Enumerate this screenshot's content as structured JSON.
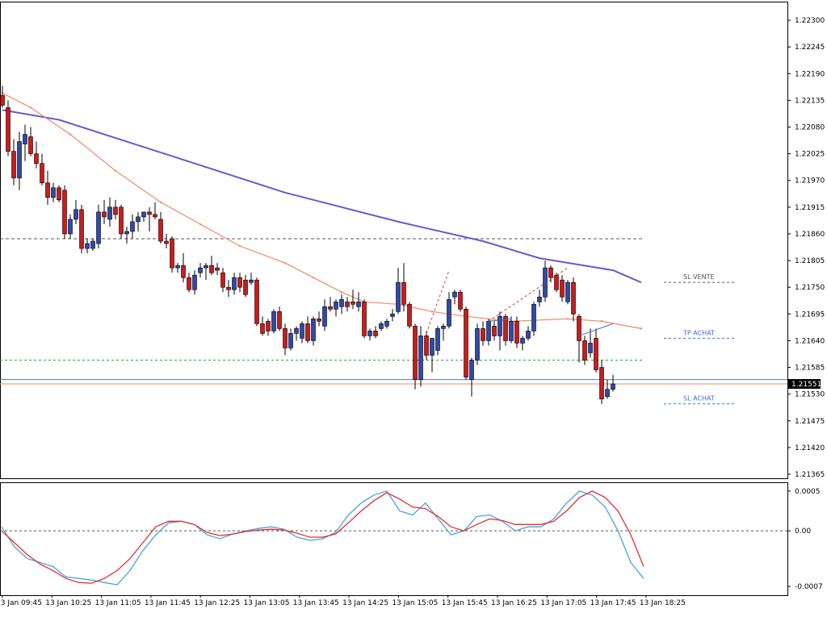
{
  "chart_data": [
    {
      "type": "candlestick",
      "title": "",
      "ylim": [
        1.21365,
        1.2233
      ],
      "price_tick_labels": [
        "1.22300",
        "1.22245",
        "1.22190",
        "1.22135",
        "1.22080",
        "1.22025",
        "1.21970",
        "1.21915",
        "1.21860",
        "1.21805",
        "1.21750",
        "1.21695",
        "1.21640",
        "1.21585",
        "1.21530",
        "1.21475",
        "1.21420",
        "1.21365"
      ],
      "time_tick_labels": [
        "13 Jan 09:45",
        "13 Jan 10:25",
        "13 Jan 11:05",
        "13 Jan 11:45",
        "13 Jan 12:25",
        "13 Jan 13:05",
        "13 Jan 13:45",
        "13 Jan 14:25",
        "13 Jan 15:05",
        "13 Jan 15:45",
        "13 Jan 16:25",
        "13 Jan 17:05",
        "13 Jan 17:45",
        "13 Jan 18:25"
      ],
      "current_price_label": "1.21551",
      "candles": [
        {
          "o": 1.22145,
          "h": 1.22165,
          "l": 1.2212,
          "c": 1.22125
        },
        {
          "o": 1.2212,
          "h": 1.22135,
          "l": 1.2202,
          "c": 1.2203
        },
        {
          "o": 1.2203,
          "h": 1.22055,
          "l": 1.2196,
          "c": 1.21975
        },
        {
          "o": 1.21975,
          "h": 1.2207,
          "l": 1.2195,
          "c": 1.2205
        },
        {
          "o": 1.22045,
          "h": 1.22085,
          "l": 1.2201,
          "c": 1.22065
        },
        {
          "o": 1.2206,
          "h": 1.2208,
          "l": 1.2202,
          "c": 1.22025
        },
        {
          "o": 1.22025,
          "h": 1.2205,
          "l": 1.21995,
          "c": 1.22005
        },
        {
          "o": 1.22005,
          "h": 1.22025,
          "l": 1.2196,
          "c": 1.21965
        },
        {
          "o": 1.21965,
          "h": 1.2199,
          "l": 1.2192,
          "c": 1.21935
        },
        {
          "o": 1.21935,
          "h": 1.21965,
          "l": 1.21925,
          "c": 1.21955
        },
        {
          "o": 1.21955,
          "h": 1.2196,
          "l": 1.21925,
          "c": 1.2193
        },
        {
          "o": 1.2195,
          "h": 1.2196,
          "l": 1.2185,
          "c": 1.2186
        },
        {
          "o": 1.2186,
          "h": 1.219,
          "l": 1.2185,
          "c": 1.2189
        },
        {
          "o": 1.2189,
          "h": 1.2193,
          "l": 1.2188,
          "c": 1.2191
        },
        {
          "o": 1.2191,
          "h": 1.2192,
          "l": 1.2182,
          "c": 1.2183
        },
        {
          "o": 1.2183,
          "h": 1.2185,
          "l": 1.2182,
          "c": 1.2184
        },
        {
          "o": 1.2183,
          "h": 1.2185,
          "l": 1.21825,
          "c": 1.21845
        },
        {
          "o": 1.2184,
          "h": 1.2192,
          "l": 1.2183,
          "c": 1.21905
        },
        {
          "o": 1.21905,
          "h": 1.2193,
          "l": 1.2188,
          "c": 1.21895
        },
        {
          "o": 1.2189,
          "h": 1.21935,
          "l": 1.21875,
          "c": 1.21915
        },
        {
          "o": 1.21915,
          "h": 1.2193,
          "l": 1.2189,
          "c": 1.219
        },
        {
          "o": 1.21915,
          "h": 1.2192,
          "l": 1.2185,
          "c": 1.2186
        },
        {
          "o": 1.2186,
          "h": 1.21875,
          "l": 1.2184,
          "c": 1.21865
        },
        {
          "o": 1.21865,
          "h": 1.219,
          "l": 1.2185,
          "c": 1.21885
        },
        {
          "o": 1.21885,
          "h": 1.21905,
          "l": 1.21865,
          "c": 1.21895
        },
        {
          "o": 1.21895,
          "h": 1.21905,
          "l": 1.21885,
          "c": 1.21905
        },
        {
          "o": 1.21905,
          "h": 1.21915,
          "l": 1.21865,
          "c": 1.219
        },
        {
          "o": 1.219,
          "h": 1.21925,
          "l": 1.2189,
          "c": 1.21895
        },
        {
          "o": 1.2189,
          "h": 1.21905,
          "l": 1.2184,
          "c": 1.21845
        },
        {
          "o": 1.21845,
          "h": 1.2186,
          "l": 1.2183,
          "c": 1.2184
        },
        {
          "o": 1.2185,
          "h": 1.21855,
          "l": 1.2178,
          "c": 1.2179
        },
        {
          "o": 1.2179,
          "h": 1.218,
          "l": 1.2178,
          "c": 1.21795
        },
        {
          "o": 1.21795,
          "h": 1.2182,
          "l": 1.2176,
          "c": 1.2177
        },
        {
          "o": 1.2177,
          "h": 1.2178,
          "l": 1.2174,
          "c": 1.21745
        },
        {
          "o": 1.21745,
          "h": 1.21785,
          "l": 1.21735,
          "c": 1.21775
        },
        {
          "o": 1.2178,
          "h": 1.218,
          "l": 1.2177,
          "c": 1.2179
        },
        {
          "o": 1.2179,
          "h": 1.218,
          "l": 1.21765,
          "c": 1.21795
        },
        {
          "o": 1.21795,
          "h": 1.21815,
          "l": 1.21775,
          "c": 1.2178
        },
        {
          "o": 1.2179,
          "h": 1.218,
          "l": 1.21775,
          "c": 1.21785
        },
        {
          "o": 1.2178,
          "h": 1.2179,
          "l": 1.2174,
          "c": 1.2175
        },
        {
          "o": 1.2175,
          "h": 1.21765,
          "l": 1.2173,
          "c": 1.21745
        },
        {
          "o": 1.21745,
          "h": 1.2178,
          "l": 1.21735,
          "c": 1.2177
        },
        {
          "o": 1.2177,
          "h": 1.2178,
          "l": 1.2174,
          "c": 1.2175
        },
        {
          "o": 1.21765,
          "h": 1.21775,
          "l": 1.2173,
          "c": 1.21735
        },
        {
          "o": 1.2176,
          "h": 1.2178,
          "l": 1.21755,
          "c": 1.21765
        },
        {
          "o": 1.21765,
          "h": 1.2177,
          "l": 1.2167,
          "c": 1.21675
        },
        {
          "o": 1.21675,
          "h": 1.2169,
          "l": 1.2165,
          "c": 1.21655
        },
        {
          "o": 1.2168,
          "h": 1.21685,
          "l": 1.2165,
          "c": 1.2166
        },
        {
          "o": 1.2166,
          "h": 1.21705,
          "l": 1.21655,
          "c": 1.217
        },
        {
          "o": 1.217,
          "h": 1.2171,
          "l": 1.2166,
          "c": 1.21665
        },
        {
          "o": 1.21665,
          "h": 1.21675,
          "l": 1.2161,
          "c": 1.21625
        },
        {
          "o": 1.21625,
          "h": 1.21665,
          "l": 1.2162,
          "c": 1.21655
        },
        {
          "o": 1.21655,
          "h": 1.2167,
          "l": 1.2164,
          "c": 1.21665
        },
        {
          "o": 1.21645,
          "h": 1.2168,
          "l": 1.21635,
          "c": 1.21675
        },
        {
          "o": 1.21675,
          "h": 1.2169,
          "l": 1.21635,
          "c": 1.2164
        },
        {
          "o": 1.2164,
          "h": 1.2169,
          "l": 1.2163,
          "c": 1.21685
        },
        {
          "o": 1.21685,
          "h": 1.217,
          "l": 1.2167,
          "c": 1.2168
        },
        {
          "o": 1.2167,
          "h": 1.21725,
          "l": 1.2166,
          "c": 1.2171
        },
        {
          "o": 1.2171,
          "h": 1.2173,
          "l": 1.217,
          "c": 1.21705
        },
        {
          "o": 1.21705,
          "h": 1.21725,
          "l": 1.2169,
          "c": 1.2172
        },
        {
          "o": 1.2171,
          "h": 1.21735,
          "l": 1.21695,
          "c": 1.21725
        },
        {
          "o": 1.2172,
          "h": 1.2173,
          "l": 1.217,
          "c": 1.2171
        },
        {
          "o": 1.2172,
          "h": 1.21745,
          "l": 1.21705,
          "c": 1.21715
        },
        {
          "o": 1.2171,
          "h": 1.2174,
          "l": 1.217,
          "c": 1.2172
        },
        {
          "o": 1.2172,
          "h": 1.21725,
          "l": 1.21645,
          "c": 1.2165
        },
        {
          "o": 1.2165,
          "h": 1.21665,
          "l": 1.2164,
          "c": 1.2166
        },
        {
          "o": 1.2166,
          "h": 1.2167,
          "l": 1.21645,
          "c": 1.2165
        },
        {
          "o": 1.21665,
          "h": 1.2168,
          "l": 1.2166,
          "c": 1.21675
        },
        {
          "o": 1.2167,
          "h": 1.21685,
          "l": 1.21665,
          "c": 1.2168
        },
        {
          "o": 1.2169,
          "h": 1.21705,
          "l": 1.2168,
          "c": 1.21695
        },
        {
          "o": 1.217,
          "h": 1.2179,
          "l": 1.21695,
          "c": 1.2176
        },
        {
          "o": 1.2176,
          "h": 1.218,
          "l": 1.217,
          "c": 1.21715
        },
        {
          "o": 1.21715,
          "h": 1.2172,
          "l": 1.21665,
          "c": 1.2167
        },
        {
          "o": 1.2167,
          "h": 1.21675,
          "l": 1.2154,
          "c": 1.2156
        },
        {
          "o": 1.2156,
          "h": 1.2167,
          "l": 1.21545,
          "c": 1.2165
        },
        {
          "o": 1.2165,
          "h": 1.2166,
          "l": 1.216,
          "c": 1.2161
        },
        {
          "o": 1.2161,
          "h": 1.2164,
          "l": 1.21575,
          "c": 1.21645
        },
        {
          "o": 1.2162,
          "h": 1.2167,
          "l": 1.2161,
          "c": 1.21665
        },
        {
          "o": 1.21665,
          "h": 1.21675,
          "l": 1.2164,
          "c": 1.2167
        },
        {
          "o": 1.2167,
          "h": 1.2174,
          "l": 1.21665,
          "c": 1.21725
        },
        {
          "o": 1.2173,
          "h": 1.21745,
          "l": 1.21715,
          "c": 1.2174
        },
        {
          "o": 1.2174,
          "h": 1.21745,
          "l": 1.217,
          "c": 1.21705
        },
        {
          "o": 1.21705,
          "h": 1.2171,
          "l": 1.2156,
          "c": 1.21565
        },
        {
          "o": 1.2156,
          "h": 1.21605,
          "l": 1.21525,
          "c": 1.216
        },
        {
          "o": 1.216,
          "h": 1.21675,
          "l": 1.2159,
          "c": 1.21665
        },
        {
          "o": 1.21665,
          "h": 1.2168,
          "l": 1.2163,
          "c": 1.2164
        },
        {
          "o": 1.2164,
          "h": 1.21685,
          "l": 1.2163,
          "c": 1.2168
        },
        {
          "o": 1.2167,
          "h": 1.2168,
          "l": 1.2164,
          "c": 1.2165
        },
        {
          "o": 1.2165,
          "h": 1.217,
          "l": 1.2162,
          "c": 1.2169
        },
        {
          "o": 1.2169,
          "h": 1.21695,
          "l": 1.2163,
          "c": 1.2164
        },
        {
          "o": 1.2164,
          "h": 1.2169,
          "l": 1.21635,
          "c": 1.2168
        },
        {
          "o": 1.2168,
          "h": 1.2169,
          "l": 1.21625,
          "c": 1.21635
        },
        {
          "o": 1.21635,
          "h": 1.2165,
          "l": 1.2162,
          "c": 1.21645
        },
        {
          "o": 1.21645,
          "h": 1.2167,
          "l": 1.2164,
          "c": 1.2166
        },
        {
          "o": 1.2166,
          "h": 1.2172,
          "l": 1.2165,
          "c": 1.21715
        },
        {
          "o": 1.2172,
          "h": 1.21745,
          "l": 1.2171,
          "c": 1.2173
        },
        {
          "o": 1.2173,
          "h": 1.21805,
          "l": 1.2172,
          "c": 1.2179
        },
        {
          "o": 1.2179,
          "h": 1.21795,
          "l": 1.2176,
          "c": 1.2177
        },
        {
          "o": 1.21775,
          "h": 1.2178,
          "l": 1.2174,
          "c": 1.21745
        },
        {
          "o": 1.21765,
          "h": 1.21775,
          "l": 1.2172,
          "c": 1.2173
        },
        {
          "o": 1.2172,
          "h": 1.21765,
          "l": 1.21715,
          "c": 1.2176
        },
        {
          "o": 1.2176,
          "h": 1.2177,
          "l": 1.2168,
          "c": 1.21695
        },
        {
          "o": 1.2169,
          "h": 1.21695,
          "l": 1.21595,
          "c": 1.2164
        },
        {
          "o": 1.2164,
          "h": 1.2165,
          "l": 1.2159,
          "c": 1.216
        },
        {
          "o": 1.21615,
          "h": 1.21665,
          "l": 1.21605,
          "c": 1.21635
        },
        {
          "o": 1.21645,
          "h": 1.21665,
          "l": 1.21575,
          "c": 1.2158
        },
        {
          "o": 1.21585,
          "h": 1.216,
          "l": 1.2151,
          "c": 1.2152
        },
        {
          "o": 1.21525,
          "h": 1.2156,
          "l": 1.2152,
          "c": 1.2154
        },
        {
          "o": 1.2154,
          "h": 1.2157,
          "l": 1.21535,
          "c": 1.21551
        }
      ],
      "moving_averages": [
        {
          "color": "#6a5acd",
          "points": [
            [
              0,
              1.22115
            ],
            [
              10,
              1.22095
            ],
            [
              30,
              1.2202
            ],
            [
              50,
              1.21945
            ],
            [
              70,
              1.21885
            ],
            [
              85,
              1.21845
            ],
            [
              95,
              1.2181
            ],
            [
              108,
              1.21785
            ],
            [
              113,
              1.2176
            ]
          ]
        },
        {
          "color": "#ee8866",
          "points": [
            [
              0,
              1.2215
            ],
            [
              5,
              1.2212
            ],
            [
              12,
              1.22065
            ],
            [
              20,
              1.2199
            ],
            [
              28,
              1.21925
            ],
            [
              35,
              1.2188
            ],
            [
              42,
              1.21835
            ],
            [
              50,
              1.218
            ],
            [
              55,
              1.2177
            ],
            [
              60,
              1.2174
            ],
            [
              64,
              1.2172
            ],
            [
              70,
              1.21715
            ],
            [
              76,
              1.217
            ],
            [
              82,
              1.2169
            ],
            [
              90,
              1.2168
            ],
            [
              100,
              1.21685
            ],
            [
              106,
              1.2168
            ],
            [
              113,
              1.21665
            ]
          ]
        }
      ],
      "horizontal_lines": [
        {
          "value": 1.2185,
          "color": "#555555",
          "dash": "4,3",
          "extent": "plot"
        },
        {
          "value": 1.216,
          "color": "#22aa22",
          "dash": "3,3",
          "extent": "plot"
        },
        {
          "value": 1.2156,
          "color": "#4a7ccc",
          "dash": "",
          "extent": "full"
        },
        {
          "value": 1.21551,
          "color": "#ee8866",
          "dash": "",
          "extent": "full"
        },
        {
          "value": 1.2176,
          "color": "#555555",
          "dash": "3,3",
          "extent": "label",
          "label": "SL VENTE"
        },
        {
          "value": 1.21645,
          "color": "#3a6ed8",
          "dash": "3,3",
          "extent": "label",
          "label": "TP ACHAT"
        },
        {
          "value": 1.2151,
          "color": "#3a6ed8",
          "dash": "3,3",
          "extent": "label",
          "label": "SL ACHAT"
        }
      ],
      "trade_lines": [
        {
          "from": [
            75,
            1.21655
          ],
          "to": [
            79,
            1.21785
          ],
          "color": "#dd3322",
          "dash": "3,3"
        },
        {
          "from": [
            86,
            1.2168
          ],
          "to": [
            100,
            1.2179
          ],
          "color": "#dd3322",
          "dash": "3,3"
        },
        {
          "from": [
            86,
            1.2168
          ],
          "to": [
            90,
            1.21685
          ],
          "color": "#3a6ed8",
          "dash": ""
        },
        {
          "from": [
            102,
            1.2165
          ],
          "to": [
            108,
            1.21675
          ],
          "color": "#3a6ed8",
          "dash": ""
        }
      ],
      "colors": {
        "bull": "#2f4aa8",
        "bear": "#cc1b1b",
        "grid_axis": "#000000"
      }
    },
    {
      "type": "line",
      "ylim": [
        -0.00075,
        0.00055
      ],
      "tick_labels": [
        "0.0005",
        "0.00",
        "-0.0007"
      ],
      "zero_line": 0.0,
      "series": [
        {
          "color": "#4aa0e0",
          "values": [
            5e-05,
            -0.0002,
            -0.00035,
            -0.0004,
            -0.00045,
            -0.00058,
            -0.0006,
            -0.00062,
            -0.00065,
            -0.00068,
            -0.0005,
            -0.00025,
            -5e-05,
            0.0001,
            0.00012,
            8e-05,
            -5e-05,
            -0.0001,
            -4e-05,
            0.0,
            3e-05,
            5e-05,
            2e-05,
            -8e-05,
            -0.00012,
            -0.0001,
            -2e-05,
            0.0002,
            0.00035,
            0.00045,
            0.0005,
            0.00025,
            0.0002,
            0.00035,
            0.00015,
            -5e-05,
            0.0,
            0.00018,
            0.0002,
            0.00012,
            0.0,
            5e-05,
            5e-05,
            0.00015,
            0.00035,
            0.0005,
            0.00045,
            0.0003,
            0.0,
            -0.0004,
            -0.0006
          ]
        },
        {
          "color": "#e03030",
          "values": [
            0.0,
            -0.00015,
            -0.0003,
            -0.00042,
            -0.0005,
            -0.0006,
            -0.00065,
            -0.00066,
            -0.0006,
            -0.0005,
            -0.00035,
            -0.00015,
            5e-05,
            0.00012,
            0.00012,
            8e-05,
            -2e-05,
            -6e-05,
            -4e-05,
            -1e-05,
            1e-05,
            2e-05,
            1e-05,
            -3e-05,
            -8e-05,
            -8e-05,
            -4e-05,
            0.0001,
            0.00025,
            0.00038,
            0.00048,
            0.0004,
            0.0003,
            0.00028,
            0.00018,
            5e-05,
            0.0,
            8e-05,
            0.00015,
            0.00013,
            8e-05,
            8e-05,
            8e-05,
            0.00012,
            0.00025,
            0.00042,
            0.0005,
            0.00042,
            0.00025,
            -5e-05,
            -0.00045
          ]
        }
      ]
    }
  ]
}
